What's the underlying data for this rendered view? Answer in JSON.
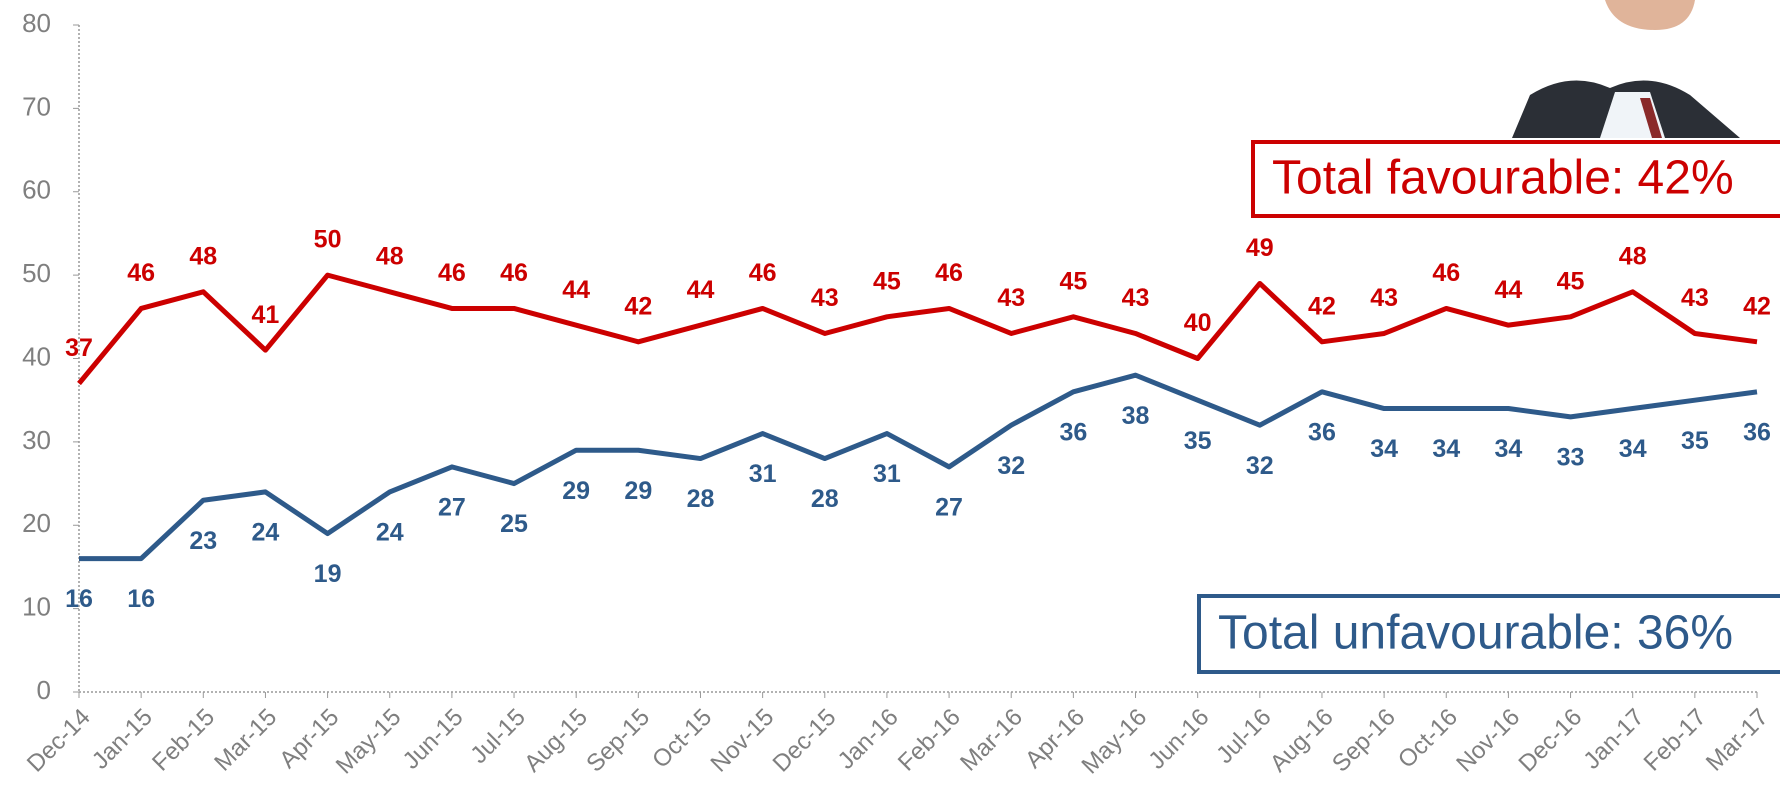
{
  "chart_data": {
    "type": "line",
    "categories": [
      "Dec-14",
      "Jan-15",
      "Feb-15",
      "Mar-15",
      "Apr-15",
      "May-15",
      "Jun-15",
      "Jul-15",
      "Aug-15",
      "Sep-15",
      "Oct-15",
      "Nov-15",
      "Dec-15",
      "Jan-16",
      "Feb-16",
      "Mar-16",
      "Apr-16",
      "May-16",
      "Jun-16",
      "Jul-16",
      "Aug-16",
      "Sep-16",
      "Oct-16",
      "Nov-16",
      "Dec-16",
      "Jan-17",
      "Feb-17",
      "Mar-17"
    ],
    "series": [
      {
        "color": "#cc0000",
        "values": [
          37,
          46,
          48,
          41,
          50,
          48,
          46,
          46,
          44,
          42,
          44,
          46,
          43,
          45,
          46,
          43,
          45,
          43,
          40,
          49,
          42,
          43,
          46,
          44,
          45,
          48,
          43,
          42
        ]
      },
      {
        "color": "#2e5a8a",
        "values": [
          16,
          16,
          23,
          24,
          19,
          24,
          27,
          25,
          29,
          29,
          28,
          31,
          28,
          31,
          27,
          32,
          36,
          38,
          35,
          32,
          36,
          34,
          34,
          34,
          33,
          34,
          35,
          36
        ]
      }
    ],
    "annotations": [
      "Total favourable: 42%",
      "Total unfavourable: 36%"
    ],
    "ylim": [
      0,
      80
    ],
    "yticks": [
      0,
      10,
      20,
      30,
      40,
      50,
      60,
      70,
      80
    ],
    "grid": false
  }
}
